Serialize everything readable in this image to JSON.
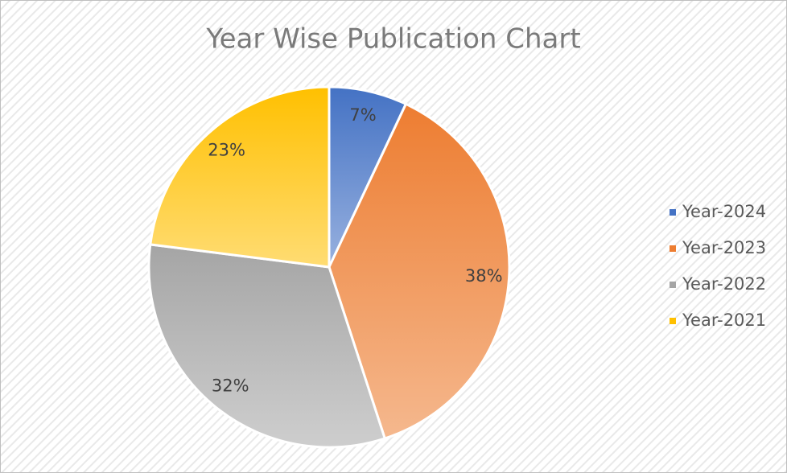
{
  "chart_data": {
    "type": "pie",
    "title": "Year Wise Publication Chart",
    "categories": [
      "Year-2024",
      "Year-2023",
      "Year-2022",
      "Year-2021"
    ],
    "values": [
      7,
      38,
      32,
      23
    ],
    "value_labels": [
      "7%",
      "38%",
      "32%",
      "23%"
    ],
    "colors": [
      "#4472c4",
      "#ed7d31",
      "#a5a5a5",
      "#ffc000"
    ],
    "legend": "right"
  }
}
